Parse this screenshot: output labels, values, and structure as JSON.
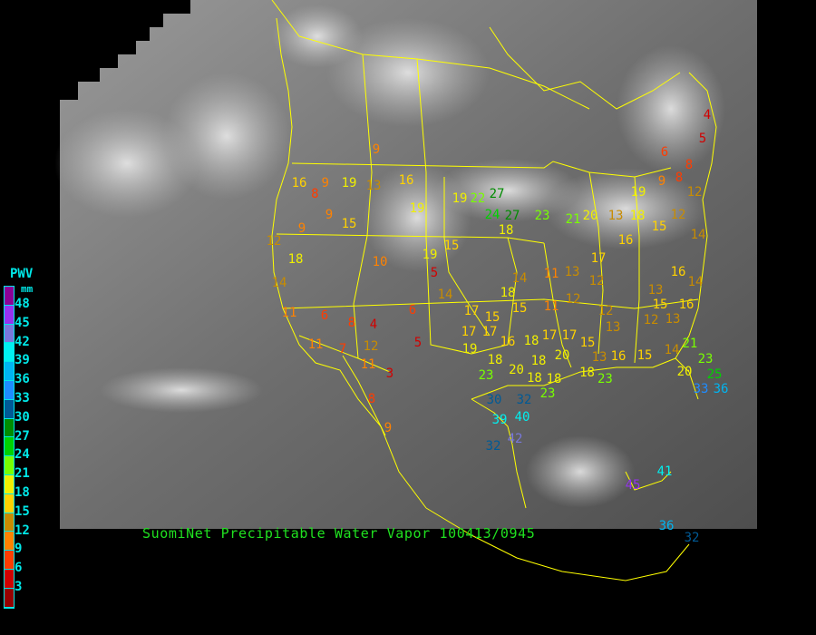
{
  "title": "SuomiNet Precipitable Water Vapor 100413/0945",
  "legend": {
    "title": "PWV",
    "unit": "mm",
    "ticks": [
      "48",
      "45",
      "42",
      "39",
      "36",
      "33",
      "30",
      "27",
      "24",
      "21",
      "18",
      "15",
      "12",
      "9",
      "6",
      "3"
    ],
    "colors": [
      "#8c0096",
      "#9632f0",
      "#7878dc",
      "#00f0f0",
      "#00b4f0",
      "#1e8cff",
      "#005a96",
      "#008c00",
      "#00d200",
      "#78ff00",
      "#f0f000",
      "#ffd200",
      "#c88c00",
      "#ff8200",
      "#ff3c00",
      "#d20000",
      "#960000"
    ]
  },
  "colors": {
    "background": "#000000",
    "boundaries": "#ffff00",
    "title": "#20e020",
    "legend": "#00e8e8"
  },
  "stations": [
    9,
    16,
    9,
    8,
    19,
    13,
    16,
    9,
    15,
    9,
    12,
    19,
    19,
    22,
    27,
    24,
    27,
    18,
    23,
    21,
    20,
    13,
    18,
    19,
    9,
    8,
    6,
    8,
    4,
    5,
    12,
    12,
    15,
    16,
    14,
    18,
    14,
    10,
    19,
    15,
    5,
    14,
    14,
    11,
    13,
    17,
    12,
    16,
    14,
    13,
    15,
    16,
    12,
    13,
    11,
    6,
    8,
    4,
    6,
    18,
    15,
    15,
    11,
    12,
    12,
    13,
    17,
    17,
    17,
    16,
    18,
    17,
    17,
    15,
    19,
    11,
    7,
    12,
    11,
    5,
    3,
    18,
    20,
    18,
    20,
    13,
    16,
    15,
    14,
    21,
    23,
    20,
    25,
    18,
    18,
    18,
    23,
    23,
    23,
    30,
    32,
    33,
    36,
    8,
    39,
    40,
    9,
    42,
    32,
    41,
    45,
    36,
    32
  ]
}
